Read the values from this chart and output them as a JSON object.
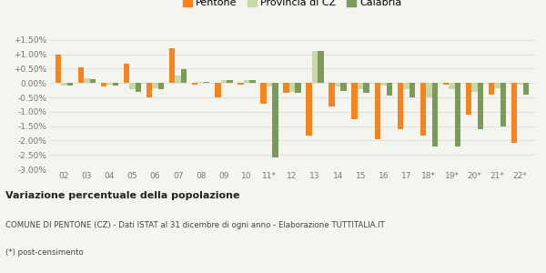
{
  "years": [
    "02",
    "03",
    "04",
    "05",
    "06",
    "07",
    "08",
    "09",
    "10",
    "11*",
    "12",
    "13",
    "14",
    "15",
    "16",
    "17",
    "18*",
    "19*",
    "20*",
    "21*",
    "22*"
  ],
  "pentone": [
    0.98,
    0.55,
    -0.13,
    0.68,
    -0.5,
    1.2,
    -0.05,
    -0.5,
    -0.05,
    -0.72,
    -0.35,
    -1.82,
    -0.83,
    -1.25,
    -1.97,
    -1.6,
    -1.82,
    -0.05,
    -1.1,
    -0.4,
    -2.07
  ],
  "provincia_cz": [
    -0.08,
    0.17,
    -0.07,
    -0.22,
    -0.18,
    0.27,
    0.05,
    0.1,
    0.1,
    -0.12,
    -0.3,
    1.12,
    -0.12,
    -0.22,
    -0.1,
    -0.22,
    -0.5,
    -0.22,
    -0.32,
    -0.18,
    -0.05
  ],
  "calabria": [
    -0.08,
    0.15,
    -0.1,
    -0.32,
    -0.22,
    0.48,
    0.05,
    0.1,
    0.1,
    -2.6,
    -0.35,
    1.12,
    -0.27,
    -0.35,
    -0.42,
    -0.5,
    -2.2,
    -2.2,
    -1.62,
    -1.52,
    -0.4
  ],
  "bar_width": 0.26,
  "color_pentone": "#f5841f",
  "color_provincia": "#c8d9a8",
  "color_calabria": "#7a9b5a",
  "ylim_min": -3.0,
  "ylim_max": 1.75,
  "yticks": [
    -3.0,
    -2.5,
    -2.0,
    -1.5,
    -1.0,
    -0.5,
    0.0,
    0.5,
    1.0,
    1.5
  ],
  "ytick_labels": [
    "-3.00%",
    "-2.50%",
    "-2.00%",
    "-1.50%",
    "-1.00%",
    "-0.50%",
    "0.00%",
    "+0.50%",
    "+1.00%",
    "+1.50%"
  ],
  "title_bold": "Variazione percentuale della popolazione",
  "subtitle": "COMUNE DI PENTONE (CZ) - Dati ISTAT al 31 dicembre di ogni anno - Elaborazione TUTTITALIA.IT",
  "footnote": "(*) post-censimento",
  "legend_labels": [
    "Pentone",
    "Provincia di CZ",
    "Calabria"
  ],
  "bg_color": "#f5f5f0",
  "grid_color": "#dddddd",
  "tick_label_color": "#777777"
}
